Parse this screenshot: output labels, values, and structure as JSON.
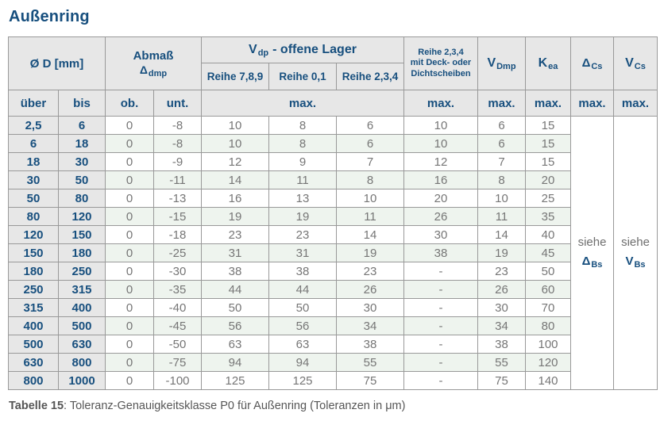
{
  "page": {
    "title": "Außenring",
    "caption_label": "Tabelle 15",
    "caption_rest": ": Toleranz-Genauigkeitsklasse P0 für Außenring (Toleranzen in μm)"
  },
  "colors": {
    "accent_blue": "#174F7E",
    "data_text_gray": "#767676",
    "grid_line_gray": "#999999",
    "header_bg_gray": "#E7E7E7",
    "row_alt_green": "#EEF4EE",
    "row_white": "#FFFFFF",
    "caption_gray": "#565656"
  },
  "table": {
    "header": {
      "d_col": "Ø D  [mm]",
      "abmass_line1": "Abmaß",
      "abmass_symbol": "Δ",
      "abmass_sub": "dmp",
      "vdp_main": "V",
      "vdp_sub": "dp",
      "vdp_rest": "-  offene Lager",
      "reihe_789": "Reihe 7,8,9",
      "reihe_01": "Reihe 0,1",
      "reihe_234": "Reihe 2,3,4",
      "deck_line1": "Reihe 2,3,4",
      "deck_line2": "mit Deck- oder",
      "deck_line3": "Dichtscheiben",
      "vdmp_main": "V",
      "vdmp_sub": "Dmp",
      "kea_main": "K",
      "kea_sub": "ea",
      "dcs_main": "Δ",
      "dcs_sub": "Cs",
      "vcs_main": "V",
      "vcs_sub": "Cs",
      "ueber": "über",
      "bis": "bis",
      "ob": "ob.",
      "unt": "unt.",
      "max": "max."
    },
    "col_names": [
      "ueber-value",
      "bis-value",
      "ob-value",
      "unt-value",
      "reihe789-value",
      "reihe01-value",
      "reihe234-value",
      "dichtscheiben-value",
      "vdmp-value",
      "kea-value"
    ],
    "rows": [
      [
        "2,5",
        "6",
        "0",
        "-8",
        "10",
        "8",
        "6",
        "10",
        "6",
        "15"
      ],
      [
        "6",
        "18",
        "0",
        "-8",
        "10",
        "8",
        "6",
        "10",
        "6",
        "15"
      ],
      [
        "18",
        "30",
        "0",
        "-9",
        "12",
        "9",
        "7",
        "12",
        "7",
        "15"
      ],
      [
        "30",
        "50",
        "0",
        "-11",
        "14",
        "11",
        "8",
        "16",
        "8",
        "20"
      ],
      [
        "50",
        "80",
        "0",
        "-13",
        "16",
        "13",
        "10",
        "20",
        "10",
        "25"
      ],
      [
        "80",
        "120",
        "0",
        "-15",
        "19",
        "19",
        "11",
        "26",
        "11",
        "35"
      ],
      [
        "120",
        "150",
        "0",
        "-18",
        "23",
        "23",
        "14",
        "30",
        "14",
        "40"
      ],
      [
        "150",
        "180",
        "0",
        "-25",
        "31",
        "31",
        "19",
        "38",
        "19",
        "45"
      ],
      [
        "180",
        "250",
        "0",
        "-30",
        "38",
        "38",
        "23",
        "-",
        "23",
        "50"
      ],
      [
        "250",
        "315",
        "0",
        "-35",
        "44",
        "44",
        "26",
        "-",
        "26",
        "60"
      ],
      [
        "315",
        "400",
        "0",
        "-40",
        "50",
        "50",
        "30",
        "-",
        "30",
        "70"
      ],
      [
        "400",
        "500",
        "0",
        "-45",
        "56",
        "56",
        "34",
        "-",
        "34",
        "80"
      ],
      [
        "500",
        "630",
        "0",
        "-50",
        "63",
        "63",
        "38",
        "-",
        "38",
        "100"
      ],
      [
        "630",
        "800",
        "0",
        "-75",
        "94",
        "94",
        "55",
        "-",
        "55",
        "120"
      ],
      [
        "800",
        "1000",
        "0",
        "-100",
        "125",
        "125",
        "75",
        "-",
        "75",
        "140"
      ]
    ],
    "siehe_dbs": {
      "prefix": "siehe",
      "symbol": "Δ",
      "sub": "Bs"
    },
    "siehe_vbs": {
      "prefix": "siehe",
      "symbol": "V",
      "sub": "Bs"
    }
  }
}
